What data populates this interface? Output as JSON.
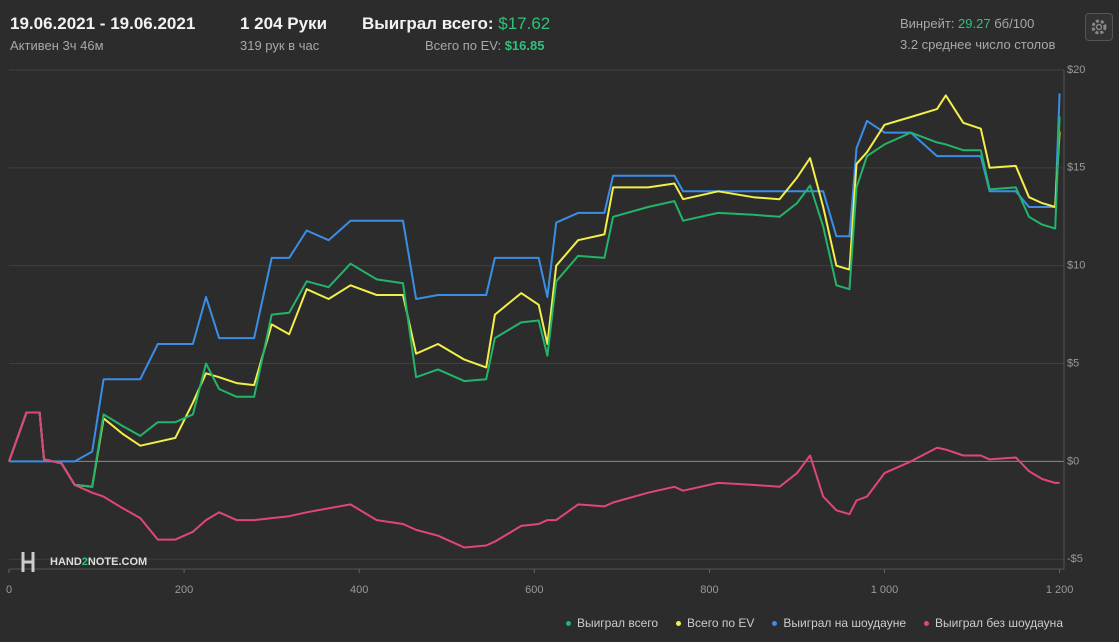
{
  "header": {
    "date_range": "19.06.2021 - 19.06.2021",
    "active": "Активен 3ч 46м",
    "hands": "1 204 Руки",
    "hands_per_hour": "319 рук в час",
    "won_total_label": "Выиграл всего:",
    "won_total_value": "$17.62",
    "ev_label": "Всего по EV:",
    "ev_value": "$16.85",
    "winrate_label": "Винрейт:",
    "winrate_value": "29.27",
    "winrate_unit": "бб/100",
    "tables": "3.2 среднее число столов"
  },
  "logo": {
    "part1": "HAND",
    "part2": "2",
    "part3": "NOTE.COM"
  },
  "chart_data": {
    "type": "line",
    "x": [
      0,
      20,
      35,
      40,
      60,
      75,
      95,
      108,
      130,
      150,
      170,
      190,
      210,
      225,
      240,
      260,
      280,
      300,
      320,
      340,
      365,
      390,
      420,
      450,
      465,
      490,
      520,
      545,
      555,
      585,
      605,
      615,
      625,
      650,
      680,
      690,
      730,
      760,
      770,
      810,
      850,
      880,
      900,
      915,
      930,
      945,
      960,
      968,
      980,
      1000,
      1030,
      1060,
      1070,
      1090,
      1110,
      1120,
      1150,
      1165,
      1180,
      1195,
      1200
    ],
    "xlim": [
      0,
      1205
    ],
    "xticks": [
      0,
      200,
      400,
      600,
      800,
      {
        "value": 1000,
        "label": "1 000"
      },
      {
        "value": 1200,
        "label": "1 200"
      }
    ],
    "ylim": [
      -5.5,
      20
    ],
    "yticks": [
      {
        "value": -5,
        "label": "-$5"
      },
      {
        "value": 0,
        "label": "$0"
      },
      {
        "value": 5,
        "label": "$5"
      },
      {
        "value": 10,
        "label": "$10"
      },
      {
        "value": 15,
        "label": "$15"
      },
      {
        "value": 20,
        "label": "$20"
      }
    ],
    "grid": true,
    "series": [
      {
        "name": "Выиграл всего",
        "color": "#22b56a",
        "values": [
          0,
          2.5,
          2.5,
          0.1,
          -0.1,
          -1.2,
          -1.3,
          2.4,
          1.8,
          1.3,
          2.0,
          2.0,
          2.4,
          5.0,
          3.7,
          3.3,
          3.3,
          7.5,
          7.6,
          9.2,
          8.9,
          10.1,
          9.3,
          9.1,
          4.3,
          4.7,
          4.1,
          4.2,
          6.3,
          7.1,
          7.2,
          5.4,
          9.2,
          10.5,
          10.4,
          12.5,
          13.0,
          13.3,
          12.3,
          12.7,
          12.6,
          12.5,
          13.2,
          14.1,
          12.0,
          9.0,
          8.8,
          14.0,
          15.6,
          16.2,
          16.8,
          16.3,
          16.2,
          15.9,
          15.9,
          13.9,
          14.0,
          12.5,
          12.1,
          11.9,
          17.62
        ]
      },
      {
        "name": "Всего по EV",
        "color": "#f2ef4a",
        "values": [
          0,
          2.5,
          2.5,
          0.1,
          -0.1,
          -1.2,
          -1.3,
          2.2,
          1.4,
          0.8,
          1.0,
          1.2,
          3.0,
          4.5,
          4.3,
          4.0,
          3.9,
          7.0,
          6.5,
          8.8,
          8.3,
          9.0,
          8.5,
          8.5,
          5.5,
          6.0,
          5.2,
          4.8,
          7.5,
          8.6,
          8.0,
          6.0,
          10.0,
          11.3,
          11.6,
          14.0,
          14.0,
          14.2,
          13.4,
          13.8,
          13.5,
          13.4,
          14.5,
          15.5,
          13.0,
          10.0,
          9.8,
          15.2,
          15.8,
          17.2,
          17.6,
          18.0,
          18.7,
          17.3,
          17.0,
          15.0,
          15.1,
          13.5,
          13.2,
          13.0,
          16.85
        ]
      },
      {
        "name": "Выиграл на шоудауне",
        "color": "#3a8ee6",
        "values": [
          0,
          0,
          0,
          0,
          0,
          0,
          0.5,
          4.2,
          4.2,
          4.2,
          6.0,
          6.0,
          6.0,
          8.4,
          6.3,
          6.3,
          6.3,
          10.4,
          10.4,
          11.8,
          11.3,
          12.3,
          12.3,
          12.3,
          8.3,
          8.5,
          8.5,
          8.5,
          10.4,
          10.4,
          10.4,
          8.4,
          12.2,
          12.7,
          12.7,
          14.6,
          14.6,
          14.6,
          13.8,
          13.8,
          13.8,
          13.8,
          13.8,
          13.8,
          13.8,
          11.5,
          11.5,
          16.0,
          17.4,
          16.8,
          16.8,
          15.6,
          15.6,
          15.6,
          15.6,
          13.8,
          13.8,
          13.0,
          13.0,
          13.0,
          18.8
        ]
      },
      {
        "name": "Выиграл без шоудауна",
        "color": "#e0467c",
        "values": [
          0,
          2.5,
          2.5,
          0.1,
          -0.1,
          -1.2,
          -1.6,
          -1.8,
          -2.4,
          -2.9,
          -4.0,
          -4.0,
          -3.6,
          -3.0,
          -2.6,
          -3.0,
          -3.0,
          -2.9,
          -2.8,
          -2.6,
          -2.4,
          -2.2,
          -3.0,
          -3.2,
          -3.5,
          -3.8,
          -4.4,
          -4.3,
          -4.1,
          -3.3,
          -3.2,
          -3.0,
          -3.0,
          -2.2,
          -2.3,
          -2.1,
          -1.6,
          -1.3,
          -1.5,
          -1.1,
          -1.2,
          -1.3,
          -0.6,
          0.3,
          -1.8,
          -2.5,
          -2.7,
          -2.0,
          -1.8,
          -0.6,
          0.0,
          0.7,
          0.6,
          0.3,
          0.3,
          0.1,
          0.2,
          -0.5,
          -0.9,
          -1.1,
          -1.1
        ]
      }
    ]
  }
}
